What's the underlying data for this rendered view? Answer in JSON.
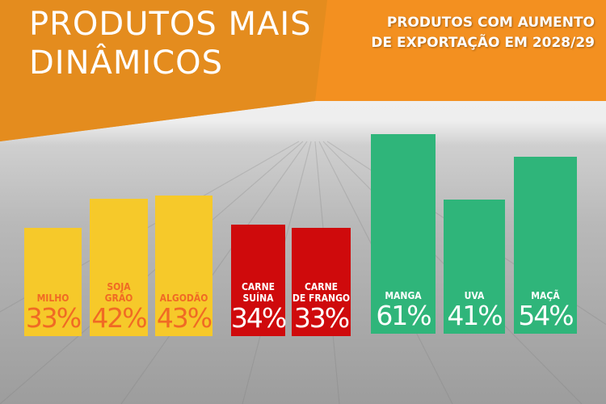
{
  "header": {
    "title_line1": "PRODUTOS MAIS",
    "title_line2": "DINÂMICOS",
    "subtitle_line1": "PRODUTOS COM AUMENTO",
    "subtitle_line2": "DE EXPORTAÇÃO EM 2028/29"
  },
  "colors": {
    "orange": "#f39020",
    "orange_dark": "#d98a1c",
    "yellow": "#f6c92a",
    "yellow_text": "#f06a24",
    "red": "#cf0a0c",
    "green": "#2fb57a"
  },
  "chart_data": {
    "type": "bar",
    "title": "PRODUTOS COM AUMENTO DE EXPORTAÇÃO EM 2028/29",
    "unit": "%",
    "categories": [
      "MILHO",
      "SOJA GRÃO",
      "ALGODÃO",
      "CARNE SUÍNA",
      "CARNE DE FRANGO",
      "MANGA",
      "UVA",
      "MAÇÃ"
    ],
    "values": [
      33,
      42,
      43,
      34,
      33,
      61,
      41,
      54
    ],
    "labels": [
      [
        "MILHO"
      ],
      [
        "SOJA",
        "GRÃO"
      ],
      [
        "ALGODÃO"
      ],
      [
        "CARNE",
        "SUÍNA"
      ],
      [
        "CARNE",
        "DE FRANGO"
      ],
      [
        "MANGA"
      ],
      [
        "UVA"
      ],
      [
        "MAÇÃ"
      ]
    ],
    "value_labels": [
      "33%",
      "42%",
      "43%",
      "34%",
      "33%",
      "61%",
      "41%",
      "54%"
    ],
    "groups": [
      "yellow",
      "yellow",
      "yellow",
      "red",
      "red",
      "green",
      "green",
      "green"
    ],
    "grid": false,
    "axes": false
  }
}
